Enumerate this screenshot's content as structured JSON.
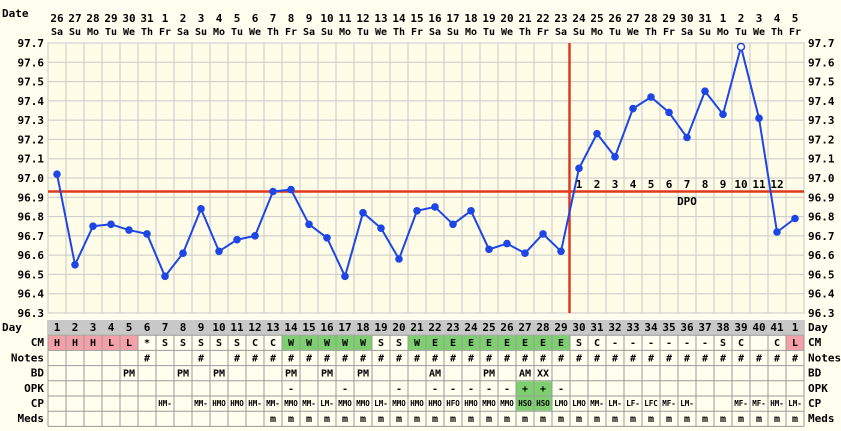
{
  "chart_data": {
    "type": "line",
    "ylim": [
      96.3,
      97.7
    ],
    "y_ticks": [
      "97.7",
      "97.6",
      "97.5",
      "97.4",
      "97.3",
      "97.2",
      "97.1",
      "97.0",
      "96.9",
      "96.8",
      "96.7",
      "96.6",
      "96.5",
      "96.4",
      "96.3"
    ],
    "date_label": "Date",
    "day_label": "Day",
    "dates": [
      "26",
      "27",
      "28",
      "29",
      "30",
      "31",
      "1",
      "2",
      "3",
      "4",
      "5",
      "6",
      "7",
      "8",
      "9",
      "10",
      "11",
      "12",
      "13",
      "14",
      "15",
      "16",
      "17",
      "18",
      "19",
      "20",
      "21",
      "22",
      "23",
      "24",
      "25",
      "26",
      "27",
      "28",
      "29",
      "30",
      "31",
      "1",
      "2",
      "3",
      "4",
      "5"
    ],
    "weekdays": [
      "Sa",
      "Su",
      "Mo",
      "Tu",
      "We",
      "Th",
      "Fr",
      "Sa",
      "Su",
      "Mo",
      "Tu",
      "We",
      "Th",
      "Fr",
      "Sa",
      "Su",
      "Mo",
      "Tu",
      "We",
      "Th",
      "Fr",
      "Sa",
      "Su",
      "Mo",
      "Tu",
      "We",
      "Th",
      "Fr",
      "Sa",
      "Su",
      "Mo",
      "Tu",
      "We",
      "Th",
      "Fr",
      "Sa",
      "Su",
      "Mo",
      "Tu",
      "We",
      "Th",
      "Fr"
    ],
    "cycle_days": [
      "1",
      "2",
      "3",
      "4",
      "5",
      "6",
      "7",
      "8",
      "9",
      "10",
      "11",
      "12",
      "13",
      "14",
      "15",
      "16",
      "17",
      "18",
      "19",
      "20",
      "21",
      "22",
      "23",
      "24",
      "25",
      "26",
      "27",
      "28",
      "29",
      "30",
      "31",
      "32",
      "33",
      "34",
      "35",
      "36",
      "37",
      "38",
      "39",
      "40",
      "41",
      "1"
    ],
    "temperatures": [
      97.02,
      96.55,
      96.75,
      96.76,
      96.73,
      96.71,
      96.49,
      96.61,
      96.84,
      96.62,
      96.68,
      96.7,
      96.93,
      96.94,
      96.76,
      96.69,
      96.49,
      96.82,
      96.74,
      96.58,
      96.83,
      96.85,
      96.76,
      96.83,
      96.63,
      96.66,
      96.61,
      96.71,
      96.62,
      97.05,
      97.23,
      97.11,
      97.36,
      97.42,
      97.34,
      97.21,
      97.45,
      97.33,
      97.68,
      97.31,
      96.72,
      96.79
    ],
    "open_point_index": 38,
    "coverline": 96.93,
    "ovulation_day_index": 28,
    "dpo_numbers": [
      "1",
      "2",
      "3",
      "4",
      "5",
      "6",
      "7",
      "8",
      "9",
      "10",
      "11",
      "12"
    ],
    "dpo_label": "DPO",
    "rows": [
      {
        "label": "CM",
        "values": [
          "H",
          "H",
          "H",
          "L",
          "L",
          "*",
          "S",
          "S",
          "S",
          "S",
          "S",
          "C",
          "C",
          "W",
          "W",
          "W",
          "W",
          "W",
          "S",
          "S",
          "W",
          "E",
          "E",
          "E",
          "E",
          "E",
          "E",
          "E",
          "E",
          "S",
          "C",
          "-",
          "-",
          "-",
          "-",
          "-",
          "-",
          "S",
          "C",
          "",
          "C",
          "L"
        ]
      },
      {
        "label": "Notes",
        "values": [
          "",
          "",
          "",
          "",
          "",
          "#",
          "",
          "",
          "#",
          "",
          "#",
          "#",
          "#",
          "#",
          "#",
          "#",
          "#",
          "#",
          "#",
          "#",
          "#",
          "#",
          "#",
          "#",
          "#",
          "#",
          "#",
          "#",
          "#",
          "#",
          "#",
          "#",
          "#",
          "#",
          "#",
          "#",
          "#",
          "#",
          "#",
          "#",
          "#",
          "#"
        ]
      },
      {
        "label": "BD",
        "values": [
          "",
          "",
          "",
          "",
          "PM",
          "",
          "",
          "PM",
          "",
          "PM",
          "",
          "",
          "",
          "PM",
          "",
          "PM",
          "",
          "PM",
          "",
          "",
          "",
          "AM",
          "",
          "",
          "PM",
          "",
          "AM",
          "XX",
          "",
          "",
          "",
          "",
          "",
          "",
          "",
          "",
          "",
          "",
          "",
          "",
          "",
          ""
        ]
      },
      {
        "label": "OPK",
        "values": [
          "",
          "",
          "",
          "",
          "",
          "",
          "",
          "",
          "",
          "",
          "",
          "",
          "",
          "-",
          "",
          "",
          "-",
          "",
          "",
          "-",
          "",
          "-",
          "-",
          "-",
          "-",
          "-",
          "+",
          "+",
          "-",
          "",
          "",
          "",
          "",
          "",
          "",
          "",
          "",
          "",
          "",
          "",
          "",
          ""
        ]
      },
      {
        "label": "CP",
        "values": [
          "",
          "",
          "",
          "",
          "",
          "",
          "HM-",
          "",
          "MM-",
          "HMO",
          "HMO",
          "HM-",
          "MM-",
          "MMO",
          "MM-",
          "LM-",
          "MMO",
          "MMO",
          "LM-",
          "MMO",
          "HMO",
          "HMO",
          "HFO",
          "HMO",
          "MMO",
          "MMO",
          "HSO",
          "HSO",
          "LMO",
          "LMO",
          "MM-",
          "LM-",
          "LF-",
          "LFC",
          "MF-",
          "LM-",
          "",
          "",
          "MF-",
          "MF-",
          "HM-",
          "LM-"
        ]
      },
      {
        "label": "Meds",
        "values": [
          "",
          "",
          "",
          "",
          "",
          "",
          "",
          "",
          "",
          "",
          "",
          "",
          "m",
          "m",
          "m",
          "m",
          "m",
          "m",
          "m",
          "m",
          "m",
          "m",
          "m",
          "m",
          "m",
          "m",
          "m",
          "m",
          "m",
          "m",
          "m",
          "m",
          "m",
          "m",
          "m",
          "m",
          "m",
          "m",
          "m",
          "m",
          "m",
          "m"
        ]
      }
    ],
    "colors": {
      "background": "#fffff0",
      "plot_bg": "#fffde8",
      "grid": "#c8c8c8",
      "line": "#1e46e6",
      "coverline": "#e03a1e",
      "fertile_green": "#7dcf6f",
      "menses_pink": "#f4a0a8",
      "day_header": "#c8c8c8"
    }
  }
}
